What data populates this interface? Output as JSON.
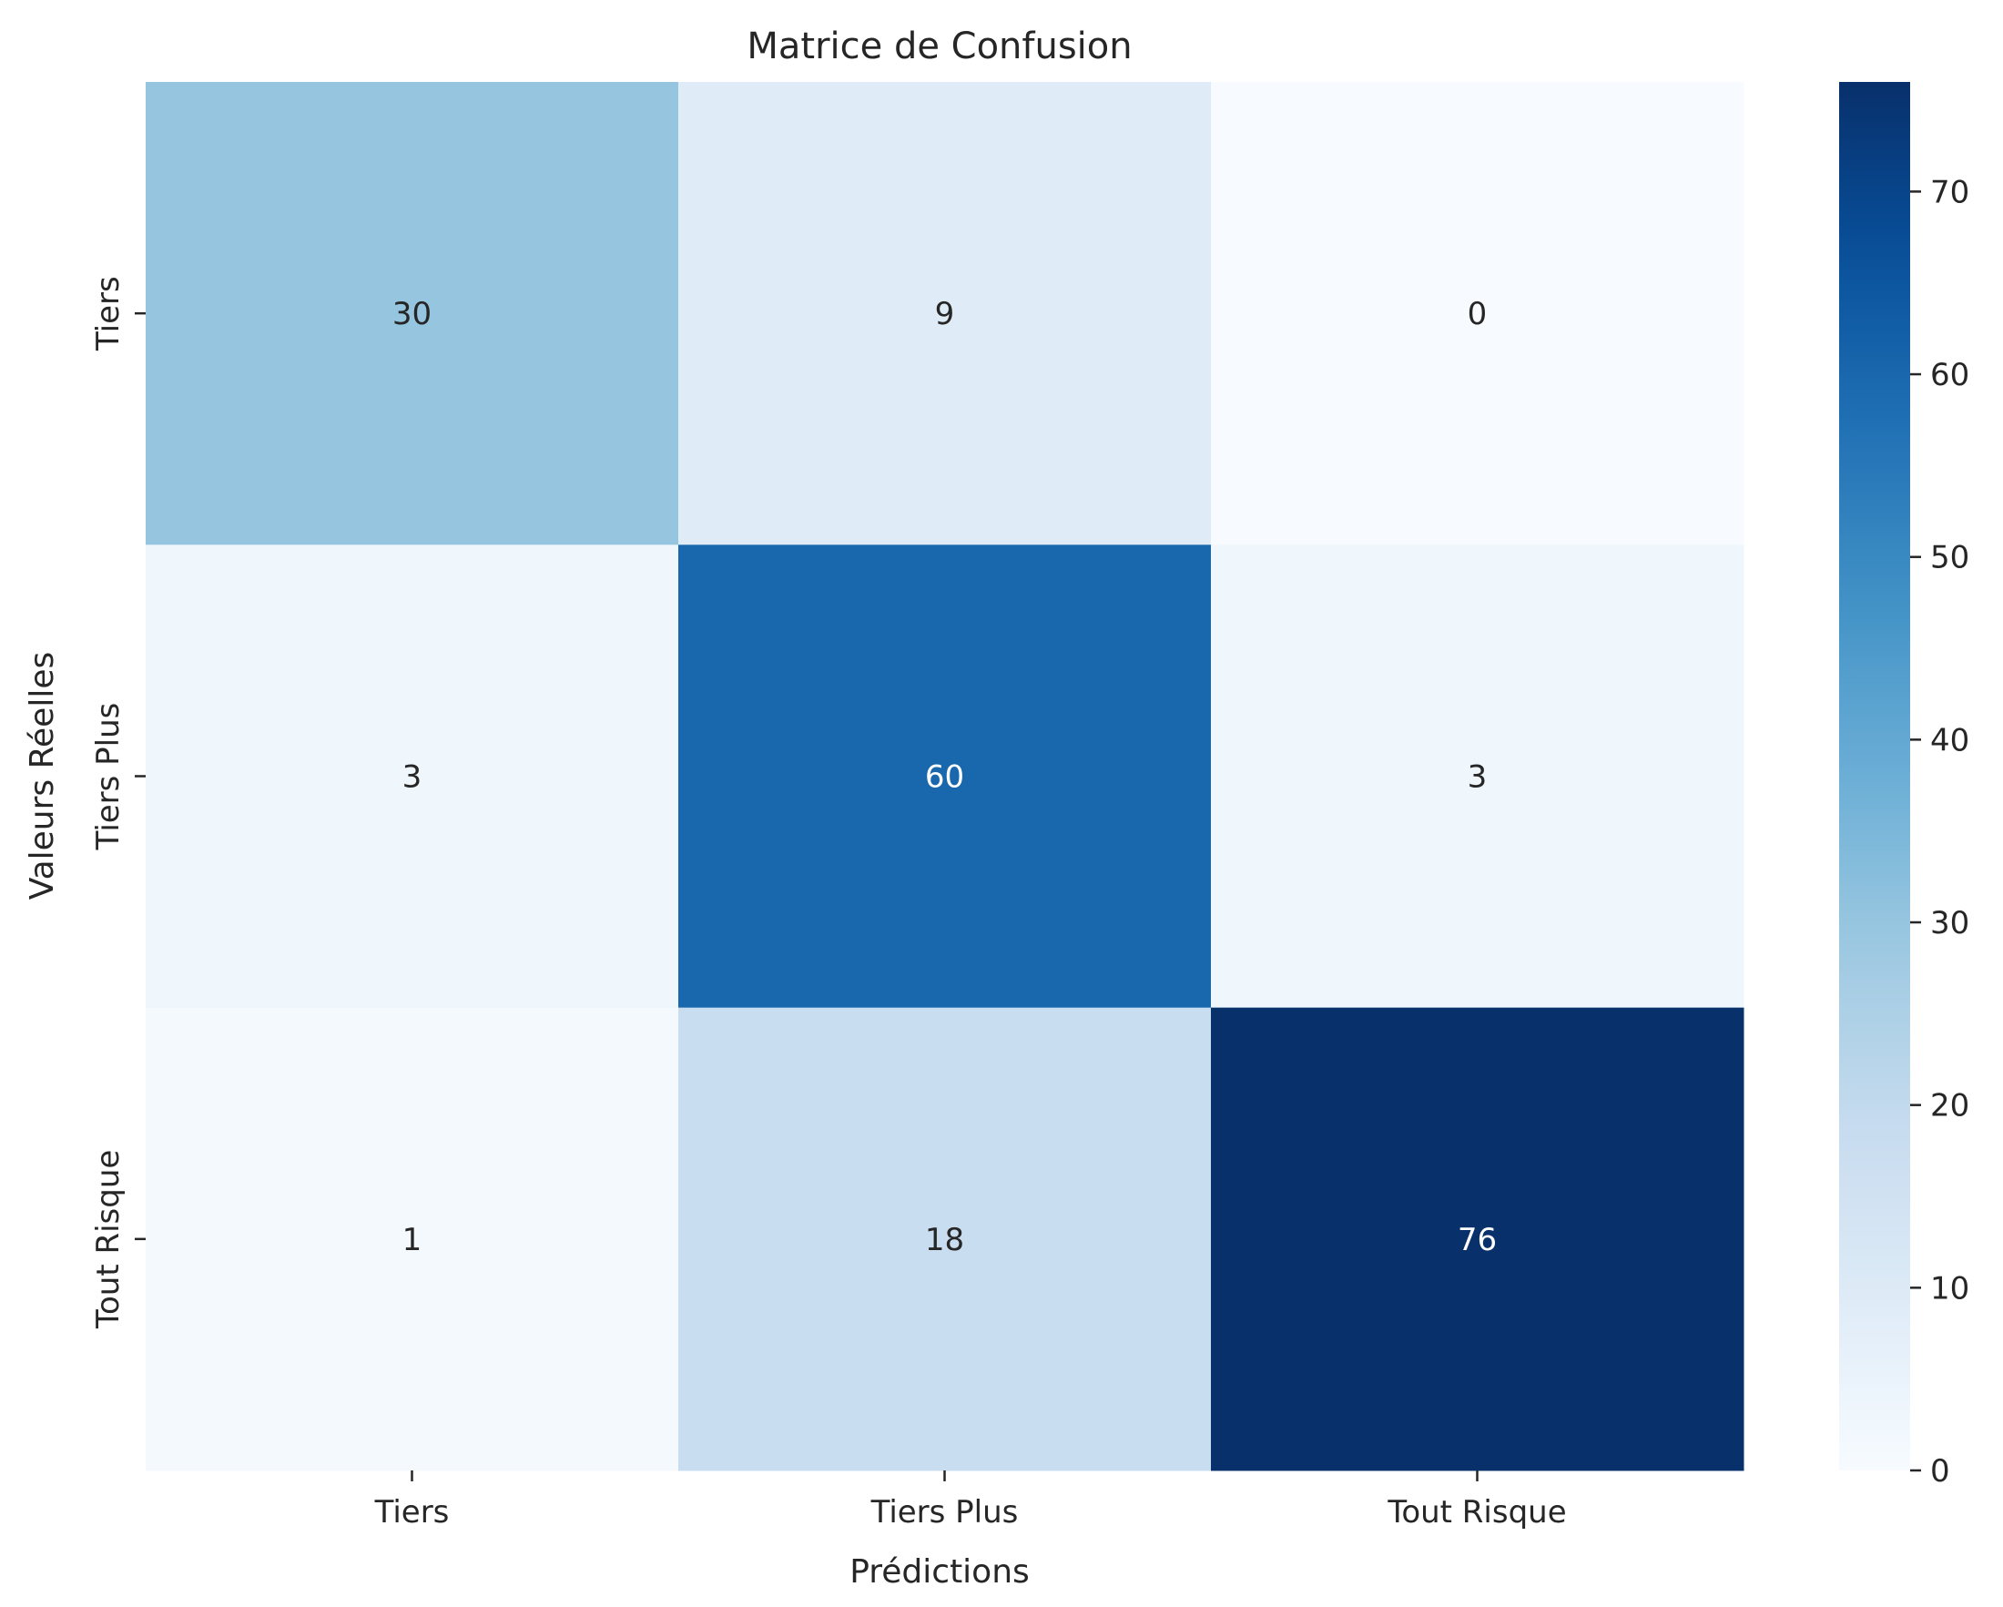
{
  "chart_data": {
    "type": "heatmap",
    "title": "Matrice de Confusion",
    "xlabel": "Prédictions",
    "ylabel": "Valeurs Réelles",
    "x_categories": [
      "Tiers",
      "Tiers Plus",
      "Tout Risque"
    ],
    "y_categories": [
      "Tiers",
      "Tiers Plus",
      "Tout Risque"
    ],
    "values": [
      [
        30,
        9,
        0
      ],
      [
        3,
        60,
        3
      ],
      [
        1,
        18,
        76
      ]
    ],
    "colormap": "Blues",
    "vmin": 0,
    "vmax": 76,
    "colorbar_ticks": [
      0,
      10,
      20,
      30,
      40,
      50,
      60,
      70
    ],
    "grid": false,
    "colors": {
      "text_dark": "#262626",
      "text_light": "#ffffff"
    }
  }
}
